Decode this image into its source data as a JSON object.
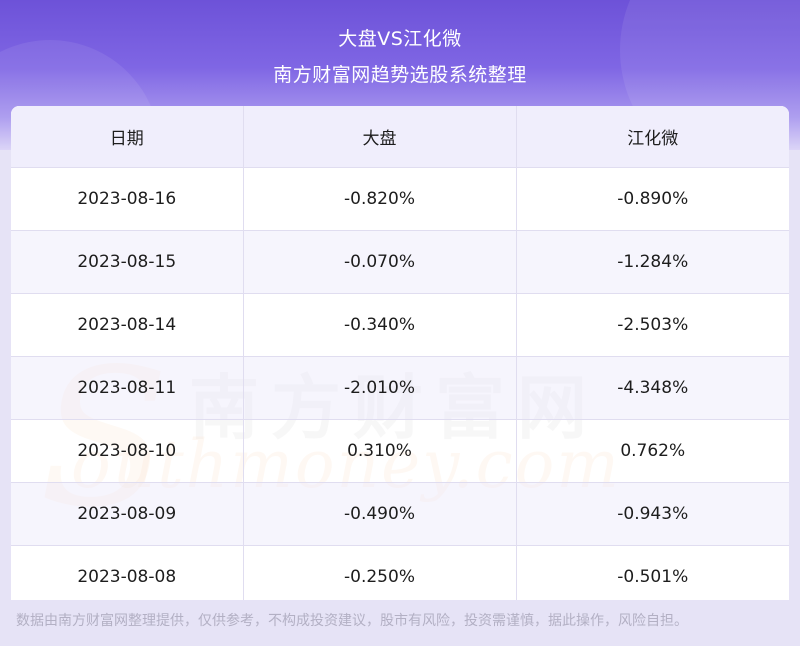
{
  "header": {
    "title": "大盘VS江化微",
    "subtitle": "南方财富网趋势选股系统整理"
  },
  "table": {
    "columns": [
      "日期",
      "大盘",
      "江化微"
    ],
    "rows": [
      [
        "2023-08-16",
        "-0.820%",
        "-0.890%"
      ],
      [
        "2023-08-15",
        "-0.070%",
        "-1.284%"
      ],
      [
        "2023-08-14",
        "-0.340%",
        "-2.503%"
      ],
      [
        "2023-08-11",
        "-2.010%",
        "-4.348%"
      ],
      [
        "2023-08-10",
        "0.310%",
        "0.762%"
      ],
      [
        "2023-08-09",
        "-0.490%",
        "-0.943%"
      ],
      [
        "2023-08-08",
        "-0.250%",
        "-0.501%"
      ]
    ]
  },
  "watermark": {
    "cn": "南方财富网",
    "en": "outhmoney.com",
    "s": "S"
  },
  "footer": {
    "disclaimer": "数据由南方财富网整理提供，仅供参考，不构成投资建议，股市有风险，投资需谨慎，据此操作，风险自担。"
  },
  "colors": {
    "header_top": "#6d52d8",
    "header_bottom": "#d9d2f7",
    "header_row_bg": "#f0eefc",
    "stripe_bg": "#f3f1fc"
  }
}
